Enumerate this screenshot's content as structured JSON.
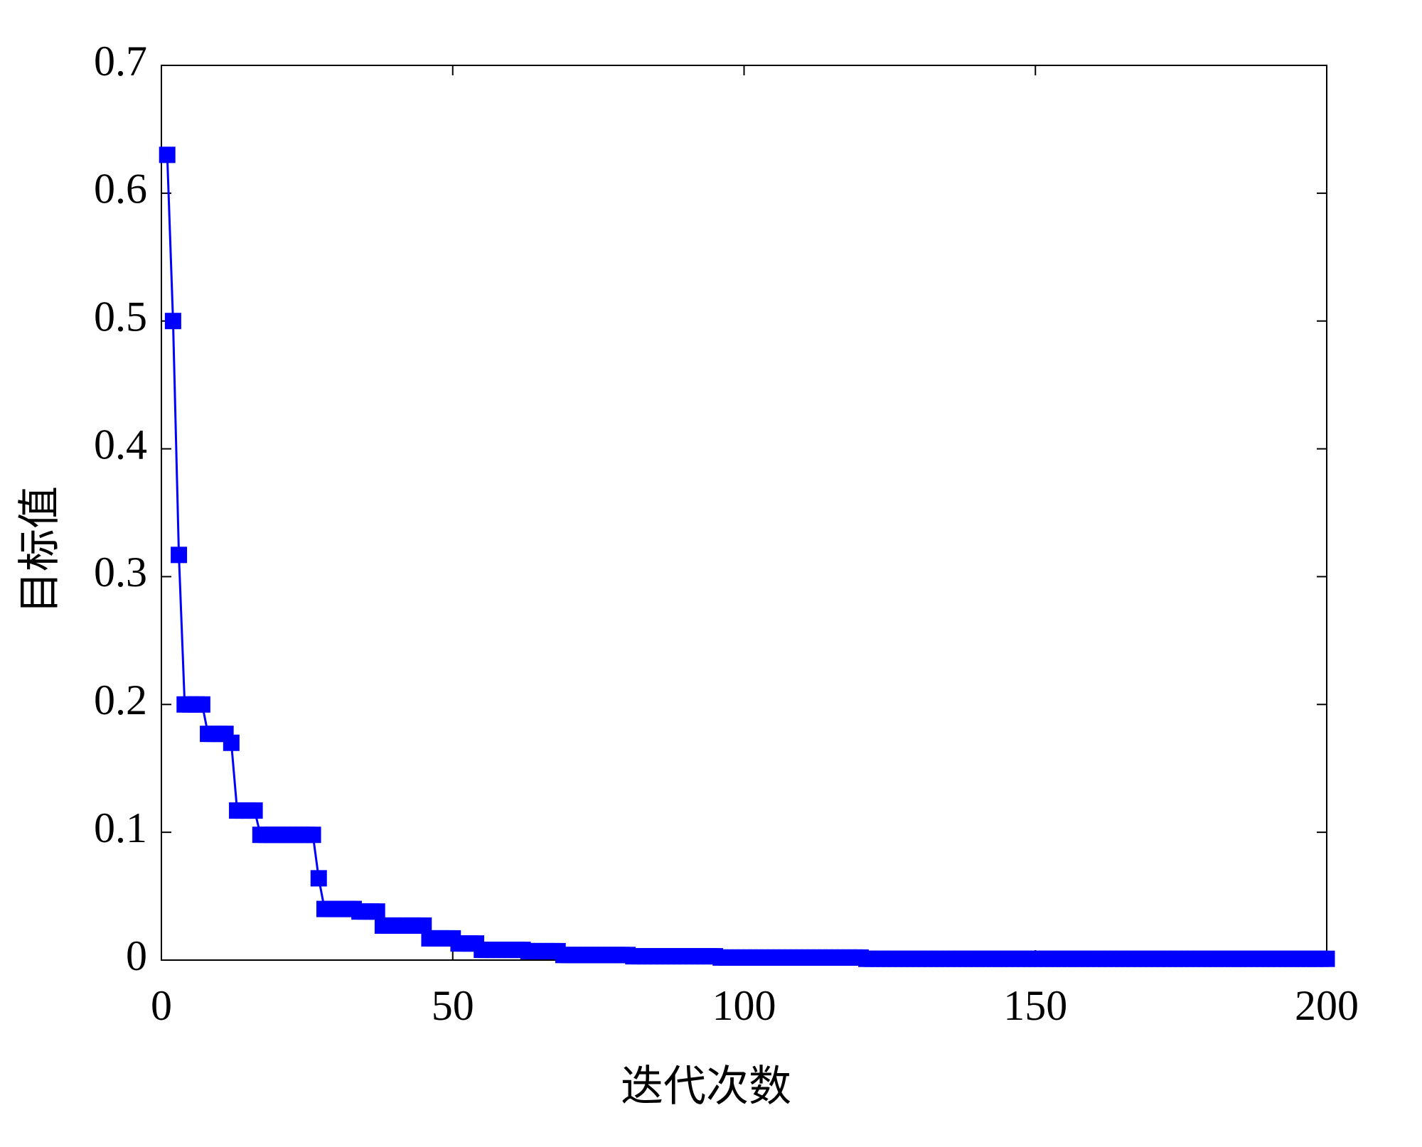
{
  "chart_data": {
    "type": "line",
    "x_label": "迭代次数",
    "y_label": "目标值",
    "xlim": [
      0,
      200
    ],
    "xticks": [
      0,
      50,
      100,
      150,
      200
    ],
    "ylim": [
      0,
      0.7
    ],
    "yticks": [
      0,
      0.1,
      0.2,
      0.3,
      0.4,
      0.5,
      0.6,
      0.7
    ],
    "grid": false,
    "series": [
      {
        "color": "#0000ff",
        "marker": "square",
        "x": [
          1,
          2,
          3,
          4,
          5,
          6,
          7,
          8,
          9,
          10,
          11,
          12,
          13,
          14,
          15,
          16,
          17,
          18,
          19,
          20,
          21,
          22,
          23,
          24,
          25,
          26,
          27,
          28,
          29,
          30,
          31,
          32,
          33,
          34,
          35,
          36,
          37,
          38,
          39,
          40,
          41,
          42,
          43,
          44,
          45,
          46,
          47,
          48,
          49,
          50,
          51,
          52,
          53,
          54,
          55,
          56,
          57,
          58,
          59,
          60,
          61,
          62,
          63,
          64,
          65,
          66,
          67,
          68,
          69,
          70,
          71,
          72,
          73,
          74,
          75,
          76,
          77,
          78,
          79,
          80,
          81,
          82,
          83,
          84,
          85,
          86,
          87,
          88,
          89,
          90,
          91,
          92,
          93,
          94,
          95,
          96,
          97,
          98,
          99,
          100,
          101,
          102,
          103,
          104,
          105,
          106,
          107,
          108,
          109,
          110,
          111,
          112,
          113,
          114,
          115,
          116,
          117,
          118,
          119,
          120,
          121,
          122,
          123,
          124,
          125,
          126,
          127,
          128,
          129,
          130,
          131,
          132,
          133,
          134,
          135,
          136,
          137,
          138,
          139,
          140,
          141,
          142,
          143,
          144,
          145,
          146,
          147,
          148,
          149,
          150,
          151,
          152,
          153,
          154,
          155,
          156,
          157,
          158,
          159,
          160,
          161,
          162,
          163,
          164,
          165,
          166,
          167,
          168,
          169,
          170,
          171,
          172,
          173,
          174,
          175,
          176,
          177,
          178,
          179,
          180,
          181,
          182,
          183,
          184,
          185,
          186,
          187,
          188,
          189,
          190,
          191,
          192,
          193,
          194,
          195,
          196,
          197,
          198,
          199,
          200
        ],
        "values": [
          0.63,
          0.5,
          0.317,
          0.2,
          0.2,
          0.2,
          0.2,
          0.177,
          0.177,
          0.177,
          0.177,
          0.17,
          0.117,
          0.117,
          0.117,
          0.117,
          0.098,
          0.098,
          0.098,
          0.098,
          0.098,
          0.098,
          0.098,
          0.098,
          0.098,
          0.098,
          0.064,
          0.04,
          0.04,
          0.04,
          0.04,
          0.04,
          0.04,
          0.038,
          0.038,
          0.038,
          0.038,
          0.027,
          0.027,
          0.027,
          0.027,
          0.027,
          0.027,
          0.027,
          0.027,
          0.017,
          0.017,
          0.017,
          0.017,
          0.017,
          0.013,
          0.013,
          0.013,
          0.013,
          0.008,
          0.008,
          0.008,
          0.008,
          0.008,
          0.008,
          0.008,
          0.008,
          0.007,
          0.007,
          0.007,
          0.007,
          0.007,
          0.007,
          0.004,
          0.004,
          0.004,
          0.004,
          0.004,
          0.004,
          0.004,
          0.004,
          0.004,
          0.004,
          0.004,
          0.004,
          0.003,
          0.003,
          0.003,
          0.003,
          0.003,
          0.003,
          0.003,
          0.003,
          0.003,
          0.003,
          0.003,
          0.003,
          0.003,
          0.003,
          0.003,
          0.002,
          0.002,
          0.002,
          0.002,
          0.002,
          0.002,
          0.002,
          0.002,
          0.002,
          0.002,
          0.002,
          0.002,
          0.002,
          0.002,
          0.002,
          0.002,
          0.002,
          0.002,
          0.002,
          0.002,
          0.002,
          0.002,
          0.002,
          0.002,
          0.002,
          0.001,
          0.001,
          0.001,
          0.001,
          0.001,
          0.001,
          0.001,
          0.001,
          0.001,
          0.001,
          0.001,
          0.001,
          0.001,
          0.001,
          0.001,
          0.001,
          0.001,
          0.001,
          0.001,
          0.001,
          0.001,
          0.001,
          0.001,
          0.001,
          0.001,
          0.001,
          0.001,
          0.001,
          0.001,
          0.001,
          0.001,
          0.001,
          0.001,
          0.001,
          0.001,
          0.001,
          0.001,
          0.001,
          0.001,
          0.001,
          0.001,
          0.001,
          0.001,
          0.001,
          0.001,
          0.001,
          0.001,
          0.001,
          0.001,
          0.001,
          0.001,
          0.001,
          0.001,
          0.001,
          0.001,
          0.001,
          0.001,
          0.001,
          0.001,
          0.001,
          0.001,
          0.001,
          0.001,
          0.001,
          0.001,
          0.001,
          0.001,
          0.001,
          0.001,
          0.001,
          0.001,
          0.001,
          0.001,
          0.001,
          0.001,
          0.001,
          0.001,
          0.001,
          0.001,
          0.001
        ]
      }
    ]
  }
}
